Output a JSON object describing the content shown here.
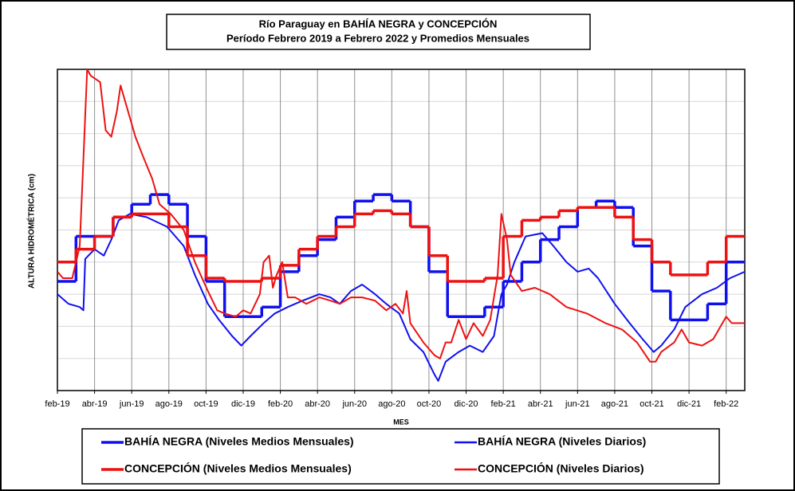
{
  "chart_data": {
    "type": "line",
    "title": "Río Paraguay en BAHÍA NEGRA y CONCEPCIÓN",
    "subtitle": "Período Febrero 2019 a Febrero 2022 y Promedios Mensuales",
    "x_label": "MES",
    "y_label": "ALTURA HIDROMÉTRICA (cm)",
    "xlim": [
      0,
      37
    ],
    "ylim": [
      0,
      100
    ],
    "xticks": [
      {
        "value": 0,
        "label": "feb-19"
      },
      {
        "value": 2,
        "label": "abr-19"
      },
      {
        "value": 4,
        "label": "jun-19"
      },
      {
        "value": 6,
        "label": "ago-19"
      },
      {
        "value": 8,
        "label": "oct-19"
      },
      {
        "value": 10,
        "label": "dic-19"
      },
      {
        "value": 12,
        "label": "feb-20"
      },
      {
        "value": 14,
        "label": "abr-20"
      },
      {
        "value": 16,
        "label": "jun-20"
      },
      {
        "value": 18,
        "label": "ago-20"
      },
      {
        "value": 20,
        "label": "oct-20"
      },
      {
        "value": 22,
        "label": "dic-20"
      },
      {
        "value": 24,
        "label": "feb-21"
      },
      {
        "value": 26,
        "label": "abr-21"
      },
      {
        "value": 28,
        "label": "jun-21"
      },
      {
        "value": 30,
        "label": "ago-21"
      },
      {
        "value": 32,
        "label": "oct-21"
      },
      {
        "value": 34,
        "label": "dic-21"
      },
      {
        "value": 36,
        "label": "feb-22"
      }
    ],
    "yticks": [
      0,
      10,
      20,
      30,
      40,
      50,
      60,
      70,
      80,
      90,
      100
    ],
    "grid": true,
    "series": [
      {
        "name": "BAHÍA NEGRA (Niveles Medios Mensuales)",
        "color": "#1010ee",
        "step": true,
        "x": [
          0,
          1,
          2,
          3,
          4,
          5,
          6,
          7,
          8,
          9,
          10,
          11,
          12,
          13,
          14,
          15,
          16,
          17,
          18,
          19,
          20,
          21,
          22,
          23,
          24,
          25,
          26,
          27,
          28,
          29,
          30,
          31,
          32,
          33,
          34,
          35,
          36
        ],
        "values": [
          34,
          48,
          48,
          54,
          58,
          61,
          58,
          48,
          34,
          23,
          23,
          26,
          37,
          42,
          47,
          54,
          59,
          61,
          59,
          51,
          37,
          23,
          23,
          26,
          34,
          40,
          47,
          51,
          57,
          59,
          57,
          45,
          31,
          22,
          22,
          27,
          40
        ]
      },
      {
        "name": "BAHÍA NEGRA (Niveles Diarios)",
        "color": "#1010ee",
        "step": false,
        "x": [
          0,
          0.6,
          1.2,
          1.4,
          1.5,
          2.0,
          2.5,
          2.9,
          3.3,
          3.9,
          4.8,
          5.9,
          6.8,
          7.4,
          8.1,
          8.7,
          9.4,
          9.9,
          10.4,
          11.1,
          11.7,
          12.4,
          13.2,
          14.1,
          14.7,
          15.2,
          15.8,
          16.4,
          17.1,
          17.7,
          18.4,
          19.0,
          19.7,
          20.3,
          20.5,
          20.9,
          21.6,
          22.2,
          22.9,
          23.5,
          23.9,
          24.2,
          24.6,
          25.2,
          26.1,
          26.7,
          27.4,
          28.0,
          28.6,
          29.1,
          30.0,
          30.8,
          31.5,
          32.1,
          32.5,
          33.2,
          33.8,
          34.7,
          35.5,
          36.2,
          37.0
        ],
        "values": [
          30,
          27,
          26,
          25,
          41,
          44,
          42,
          47,
          53,
          55,
          54,
          51,
          45,
          36,
          27,
          22,
          17,
          14,
          17,
          21,
          24,
          26,
          28,
          30,
          29,
          27,
          31,
          33,
          30,
          27,
          24,
          16,
          12,
          5,
          3,
          9,
          12,
          14,
          12,
          17,
          30,
          33,
          40,
          48,
          49,
          45,
          40,
          37,
          38,
          35,
          27,
          21,
          16,
          12,
          14,
          19,
          26,
          30,
          32,
          35,
          37
        ]
      },
      {
        "name": "CONCEPCIÓN (Niveles Medios Mensuales)",
        "color": "#ee1111",
        "step": true,
        "x": [
          0,
          1,
          2,
          3,
          4,
          5,
          6,
          7,
          8,
          9,
          10,
          11,
          12,
          13,
          14,
          15,
          16,
          17,
          18,
          19,
          20,
          21,
          22,
          23,
          24,
          25,
          26,
          27,
          28,
          29,
          30,
          31,
          32,
          33,
          34,
          35,
          36
        ],
        "values": [
          40,
          44,
          48,
          54,
          55,
          55,
          51,
          42,
          35,
          34,
          34,
          35,
          39,
          44,
          48,
          51,
          55,
          56,
          55,
          51,
          42,
          34,
          34,
          35,
          48,
          53,
          54,
          56,
          57,
          57,
          54,
          47,
          40,
          36,
          36,
          40,
          48
        ]
      },
      {
        "name": "CONCEPCIÓN (Niveles Diarios)",
        "color": "#ee1111",
        "step": false,
        "x": [
          0,
          0.3,
          0.8,
          1.0,
          1.2,
          1.4,
          1.6,
          1.8,
          2.3,
          2.6,
          2.9,
          3.2,
          3.4,
          3.8,
          4.2,
          4.6,
          5.1,
          5.5,
          6.1,
          6.8,
          7.4,
          8.1,
          8.6,
          9.0,
          9.6,
          10.0,
          10.4,
          10.9,
          11.1,
          11.4,
          11.6,
          11.8,
          12.1,
          12.4,
          12.8,
          13.4,
          14.1,
          14.7,
          15.2,
          15.8,
          16.4,
          17.1,
          17.7,
          18.2,
          18.6,
          18.8,
          19.0,
          19.7,
          20.3,
          20.6,
          20.9,
          21.2,
          21.6,
          22.0,
          22.4,
          22.9,
          23.3,
          23.7,
          23.9,
          24.2,
          24.4,
          25.0,
          25.7,
          26.5,
          27.4,
          28.5,
          29.5,
          30.4,
          31.2,
          31.9,
          32.2,
          32.5,
          33.2,
          33.6,
          34.0,
          34.7,
          35.3,
          36.0,
          36.3,
          37.0
        ],
        "values": [
          37,
          35,
          35,
          40,
          45,
          72,
          100,
          98,
          96,
          81,
          79,
          87,
          95,
          87,
          79,
          73,
          66,
          58,
          55,
          50,
          40,
          31,
          25,
          24,
          23,
          25,
          24,
          30,
          40,
          42,
          32,
          36,
          40,
          29,
          29,
          27,
          29,
          28,
          27,
          29,
          29,
          28,
          25,
          27,
          24,
          31,
          21,
          15,
          11,
          10,
          15,
          15,
          22,
          16,
          21,
          17,
          22,
          36,
          55,
          47,
          36,
          31,
          32,
          30,
          26,
          24,
          21,
          19,
          15,
          9,
          9,
          12,
          15,
          19,
          15,
          14,
          16,
          23,
          21,
          21
        ]
      }
    ]
  }
}
